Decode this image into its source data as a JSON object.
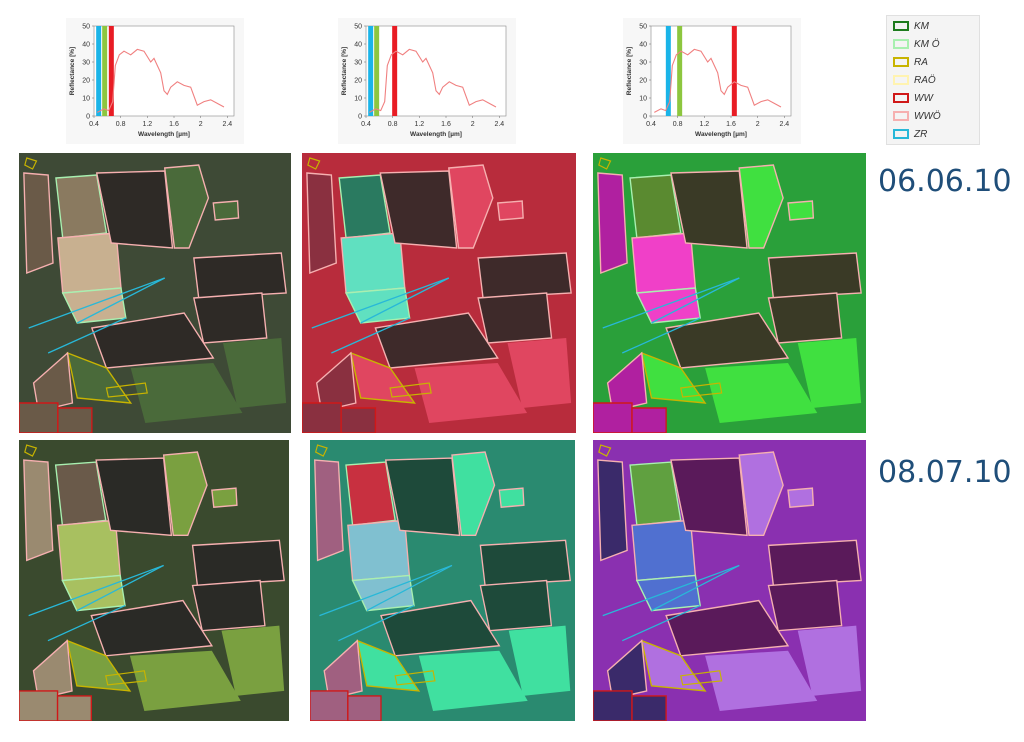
{
  "chart_data": [
    {
      "type": "line",
      "xlabel": "Wavelength [µm]",
      "ylabel": "Reflectance [%]",
      "xlim": [
        0.4,
        2.5
      ],
      "ylim": [
        0,
        50
      ],
      "xticks": [
        "0.4",
        "0.8",
        "1.2",
        "1.6",
        "2",
        "2.4"
      ],
      "yticks": [
        "0",
        "10",
        "20",
        "30",
        "40",
        "50"
      ],
      "band_colors": [
        "#1ab4e8",
        "#8dc63f",
        "#e81c24"
      ],
      "band_positions": [
        0.47,
        0.56,
        0.66
      ],
      "series": [
        {
          "color": "#f08080",
          "x": [
            0.45,
            0.55,
            0.62,
            0.68,
            0.72,
            0.78,
            0.85,
            0.95,
            1.05,
            1.15,
            1.25,
            1.3,
            1.4,
            1.45,
            1.5,
            1.55,
            1.65,
            1.75,
            1.85,
            1.95,
            2.05,
            2.15,
            2.25,
            2.35
          ],
          "y": [
            2,
            4,
            3,
            8,
            28,
            34,
            36,
            34,
            37,
            36,
            30,
            32,
            24,
            14,
            12,
            16,
            19,
            17,
            16,
            6,
            8,
            9,
            7,
            5
          ]
        }
      ]
    },
    {
      "type": "line",
      "xlabel": "Wavelength [µm]",
      "ylabel": "Reflectance [%]",
      "xlim": [
        0.4,
        2.5
      ],
      "ylim": [
        0,
        50
      ],
      "xticks": [
        "0.4",
        "0.8",
        "1.2",
        "1.6",
        "2",
        "2.4"
      ],
      "yticks": [
        "0",
        "10",
        "20",
        "30",
        "40",
        "50"
      ],
      "band_colors": [
        "#1ab4e8",
        "#8dc63f",
        "#e81c24"
      ],
      "band_positions": [
        0.47,
        0.56,
        0.83
      ],
      "series": [
        {
          "color": "#f08080",
          "x": [
            0.45,
            0.55,
            0.62,
            0.68,
            0.72,
            0.78,
            0.85,
            0.95,
            1.05,
            1.15,
            1.25,
            1.3,
            1.4,
            1.45,
            1.5,
            1.55,
            1.65,
            1.75,
            1.85,
            1.95,
            2.05,
            2.15,
            2.25,
            2.35
          ],
          "y": [
            2,
            4,
            3,
            8,
            28,
            34,
            36,
            34,
            37,
            36,
            30,
            32,
            24,
            14,
            12,
            16,
            19,
            17,
            16,
            6,
            8,
            9,
            7,
            5
          ]
        }
      ]
    },
    {
      "type": "line",
      "xlabel": "Wavelength [µm]",
      "ylabel": "Reflectance [%]",
      "xlim": [
        0.4,
        2.5
      ],
      "ylim": [
        0,
        50
      ],
      "xticks": [
        "0.4",
        "0.8",
        "1.2",
        "1.6",
        "2",
        "2.4"
      ],
      "yticks": [
        "0",
        "10",
        "20",
        "30",
        "40",
        "50"
      ],
      "band_colors": [
        "#1ab4e8",
        "#8dc63f",
        "#e81c24"
      ],
      "band_positions": [
        0.66,
        0.83,
        1.65
      ],
      "series": [
        {
          "color": "#f08080",
          "x": [
            0.45,
            0.55,
            0.62,
            0.68,
            0.72,
            0.78,
            0.85,
            0.95,
            1.05,
            1.15,
            1.25,
            1.3,
            1.4,
            1.45,
            1.5,
            1.55,
            1.65,
            1.75,
            1.85,
            1.95,
            2.05,
            2.15,
            2.25,
            2.35
          ],
          "y": [
            2,
            4,
            3,
            8,
            28,
            34,
            36,
            34,
            37,
            36,
            30,
            32,
            24,
            14,
            12,
            16,
            19,
            17,
            16,
            6,
            8,
            9,
            7,
            5
          ]
        }
      ]
    }
  ],
  "legend": [
    {
      "label": "KM",
      "color": "#1e7b1e"
    },
    {
      "label": "KM Ö",
      "color": "#a8f0b0"
    },
    {
      "label": "RA",
      "color": "#c8b400"
    },
    {
      "label": "RAÖ",
      "color": "#fff3b0"
    },
    {
      "label": "WW",
      "color": "#d01818"
    },
    {
      "label": "WWÖ",
      "color": "#f6b0b0"
    },
    {
      "label": "ZR",
      "color": "#28b8d8"
    }
  ],
  "dates": [
    "06.06.10",
    "08.07.10"
  ],
  "panels": {
    "palettes": [
      {
        "bg": "#3e4a36",
        "a": "#8a7a60",
        "b": "#c8b090",
        "c": "#2e2a26",
        "d": "#4a6a3a",
        "e": "#6a5a48"
      },
      {
        "bg": "#b82c3c",
        "a": "#2a7a60",
        "b": "#60e0c0",
        "c": "#3e2a2a",
        "d": "#e04660",
        "e": "#8a3040"
      },
      {
        "bg": "#2aa03a",
        "a": "#5a8a30",
        "b": "#f040c8",
        "c": "#3a3a26",
        "d": "#40e040",
        "e": "#b020a0"
      },
      {
        "bg": "#3a4a2e",
        "a": "#6a5a4a",
        "b": "#a8c060",
        "c": "#2a2a26",
        "d": "#7aa040",
        "e": "#9a8a70"
      },
      {
        "bg": "#2a8a70",
        "a": "#c83040",
        "b": "#80c0d0",
        "c": "#1e4a3a",
        "d": "#40e0a0",
        "e": "#a06080"
      },
      {
        "bg": "#8a30b0",
        "a": "#60a040",
        "b": "#5070d0",
        "c": "#5a1a5a",
        "d": "#b070e0",
        "e": "#3a2a6a"
      }
    ]
  }
}
